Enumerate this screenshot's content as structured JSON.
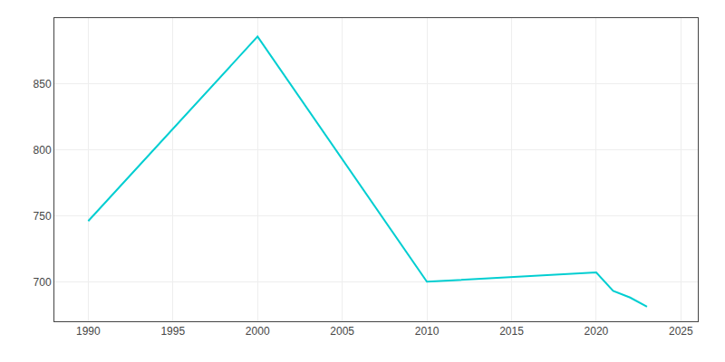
{
  "chart_data": {
    "type": "line",
    "x": [
      1990,
      2000,
      2010,
      2020,
      2021,
      2022,
      2023
    ],
    "values": [
      746,
      886,
      700,
      707,
      693,
      688,
      681
    ],
    "color": "#00CED1",
    "xlim": [
      1988,
      2026
    ],
    "ylim": [
      670,
      900
    ],
    "xticks": [
      1990,
      1995,
      2000,
      2005,
      2010,
      2015,
      2020,
      2025
    ],
    "yticks": [
      700,
      750,
      800,
      850
    ],
    "grid": true
  }
}
